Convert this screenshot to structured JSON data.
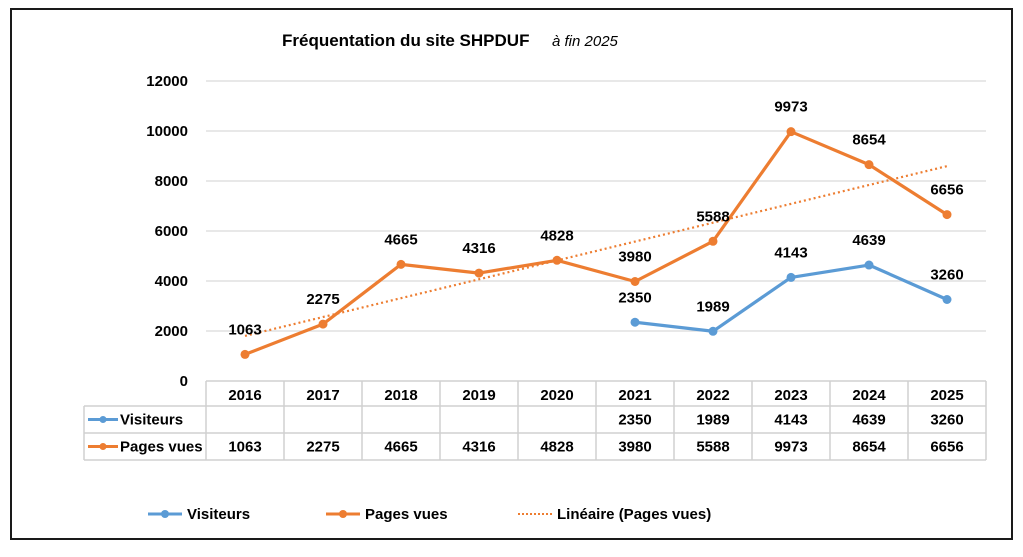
{
  "chart_data": {
    "type": "line",
    "title": "Fréquentation du site SHPDUF",
    "subtitle": "à fin 2025",
    "xlabel": "",
    "ylabel": "",
    "categories": [
      "2016",
      "2017",
      "2018",
      "2019",
      "2020",
      "2021",
      "2022",
      "2023",
      "2024",
      "2025"
    ],
    "ylim": [
      0,
      12000
    ],
    "yticks": [
      "0",
      "2000",
      "4000",
      "6000",
      "8000",
      "10000",
      "12000"
    ],
    "grid": true,
    "legend_position": "bottom",
    "series": [
      {
        "name": "Visiteurs",
        "color": "#5B9BD5",
        "values": [
          null,
          null,
          null,
          null,
          null,
          2350,
          1989,
          4143,
          4639,
          3260
        ]
      },
      {
        "name": "Pages vues",
        "color": "#ED7D31",
        "values": [
          1063,
          2275,
          4665,
          4316,
          4828,
          3980,
          5588,
          9973,
          8654,
          6656
        ]
      }
    ],
    "trendline": {
      "name": "Linéaire (Pages vues)",
      "of": "Pages vues",
      "color": "#ED7D31",
      "style": "dotted"
    },
    "data_table": true
  }
}
